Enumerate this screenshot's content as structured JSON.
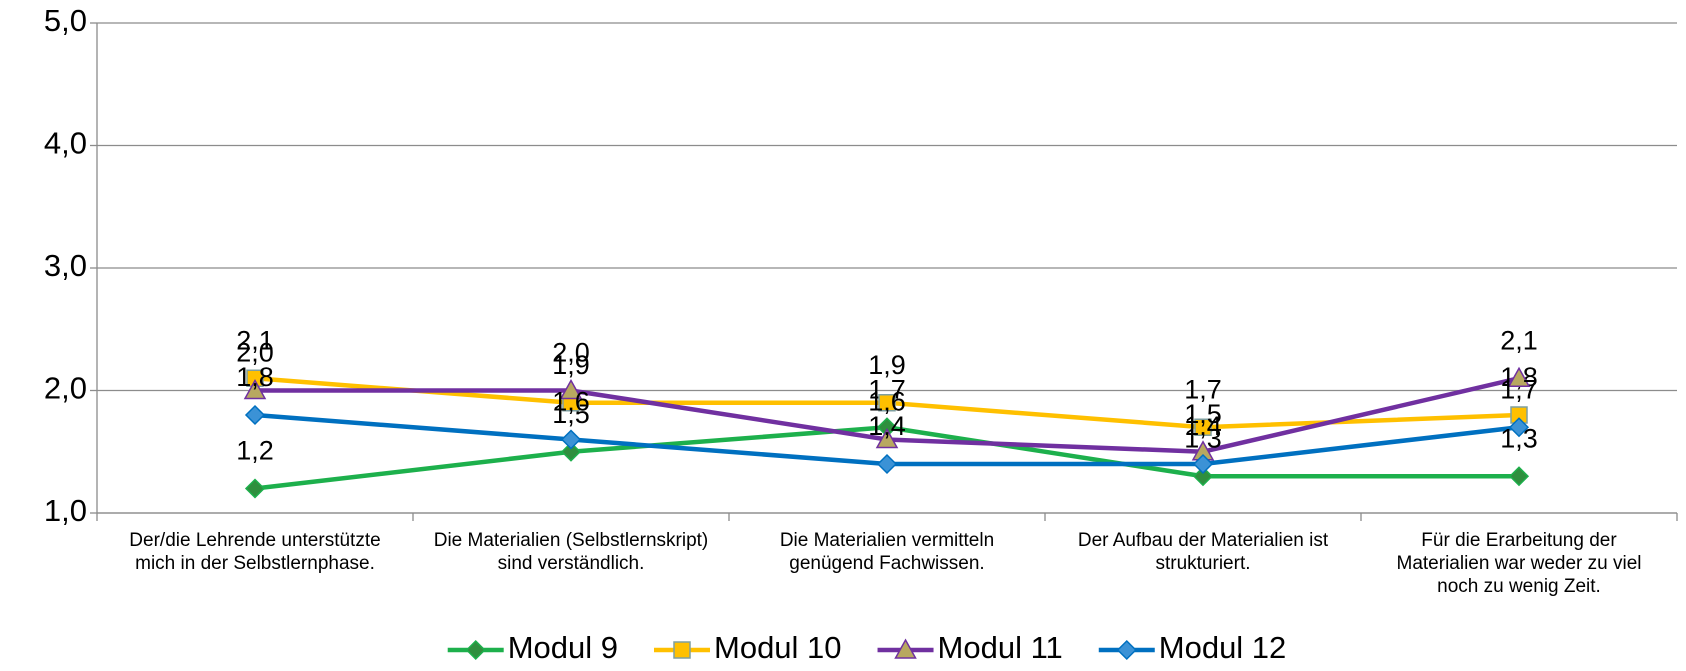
{
  "chart_data": {
    "type": "line",
    "categories": [
      "Der/die Lehrende unterstützte mich in der Selbstlernphase.",
      "Die Materialien (Selbstlernskript) sind verständlich.",
      "Die Materialien vermitteln genügend Fachwissen.",
      "Der Aufbau der Materialien ist strukturiert.",
      "Für die Erarbeitung der Materialien war weder zu viel noch zu wenig Zeit."
    ],
    "series": [
      {
        "name": "Modul 9",
        "color": "#1db04c",
        "marker": "diamond",
        "marker_color": "#2f8f3e",
        "values": [
          1.2,
          1.5,
          1.7,
          1.3,
          1.3
        ],
        "value_labels": [
          "1,2",
          "1,5",
          "1,7",
          "1,3",
          "1,3"
        ]
      },
      {
        "name": "Modul 10",
        "color": "#ffc000",
        "marker": "square",
        "marker_color": "#ffc000",
        "values": [
          2.1,
          1.9,
          1.9,
          1.7,
          1.8
        ],
        "value_labels": [
          "2,1",
          "1,9",
          "1,9",
          "1,7",
          "1,8"
        ]
      },
      {
        "name": "Modul 11",
        "color": "#7030a0",
        "marker": "triangle",
        "marker_color": "#b8a860",
        "values": [
          2.0,
          2.0,
          1.6,
          1.5,
          2.1
        ],
        "value_labels": [
          "2,0",
          "2,0",
          "1,6",
          "1,5",
          "2,1"
        ]
      },
      {
        "name": "Modul 12",
        "color": "#0070c0",
        "marker": "diamond",
        "marker_color": "#3b92d6",
        "values": [
          1.8,
          1.6,
          1.4,
          1.4,
          1.7
        ],
        "value_labels": [
          "1,8",
          "1,6",
          "1,4",
          "1,4",
          "1,7"
        ]
      }
    ],
    "ylim": [
      1,
      5
    ],
    "yticks": [
      {
        "value": 1,
        "label": "1,0"
      },
      {
        "value": 2,
        "label": "2,0"
      },
      {
        "value": 3,
        "label": "3,0"
      },
      {
        "value": 4,
        "label": "4,0"
      },
      {
        "value": 5,
        "label": "5,0"
      }
    ],
    "grid": true,
    "legend": "bottom"
  }
}
